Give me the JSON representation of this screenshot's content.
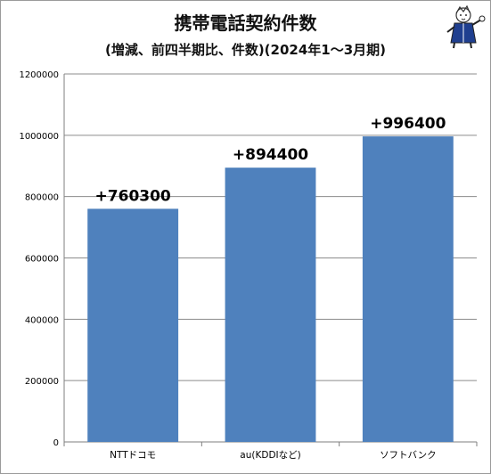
{
  "chart_data": {
    "type": "bar",
    "title": "携帯電話契約件数",
    "subtitle": "(増減、前四半期比、件数)(2024年1～3月期)",
    "categories": [
      "NTTドコモ",
      "au(KDDIなど)",
      "ソフトバンク"
    ],
    "values": [
      760300,
      894400,
      996400
    ],
    "data_labels": [
      "+760300",
      "+894400",
      "+996400"
    ],
    "yticks": [
      "0",
      "200000",
      "400000",
      "600000",
      "800000",
      "1000000",
      "1200000"
    ],
    "ylim": [
      0,
      1200000
    ],
    "bar_color": "#4f81bd",
    "grid": "horizontal",
    "legend": "none"
  },
  "mascot_icon": "mascot-icon"
}
